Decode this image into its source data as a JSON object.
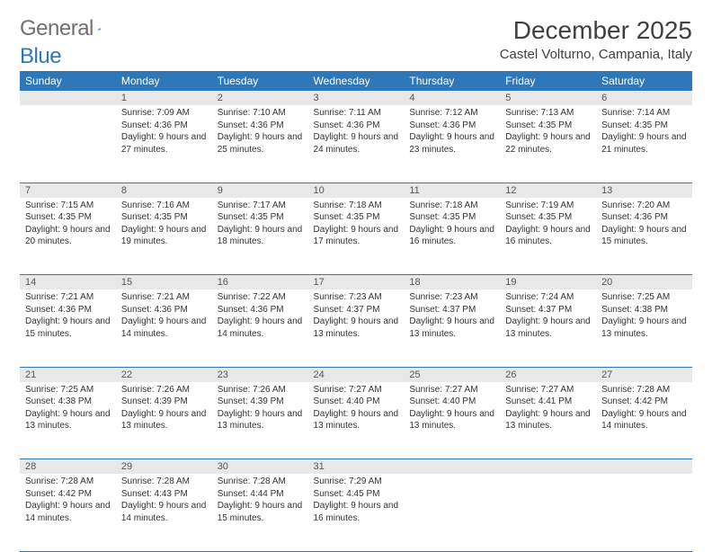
{
  "logo": {
    "text1": "General",
    "text2": "Blue"
  },
  "title": "December 2025",
  "location": "Castel Volturno, Campania, Italy",
  "headerColor": "#2e77b8",
  "dayHeaderBg": "#e8e8e8",
  "weekdays": [
    "Sunday",
    "Monday",
    "Tuesday",
    "Wednesday",
    "Thursday",
    "Friday",
    "Saturday"
  ],
  "weeks": [
    [
      null,
      {
        "n": "1",
        "sr": "7:09 AM",
        "ss": "4:36 PM",
        "dl": "9 hours and 27 minutes."
      },
      {
        "n": "2",
        "sr": "7:10 AM",
        "ss": "4:36 PM",
        "dl": "9 hours and 25 minutes."
      },
      {
        "n": "3",
        "sr": "7:11 AM",
        "ss": "4:36 PM",
        "dl": "9 hours and 24 minutes."
      },
      {
        "n": "4",
        "sr": "7:12 AM",
        "ss": "4:36 PM",
        "dl": "9 hours and 23 minutes."
      },
      {
        "n": "5",
        "sr": "7:13 AM",
        "ss": "4:35 PM",
        "dl": "9 hours and 22 minutes."
      },
      {
        "n": "6",
        "sr": "7:14 AM",
        "ss": "4:35 PM",
        "dl": "9 hours and 21 minutes."
      }
    ],
    [
      {
        "n": "7",
        "sr": "7:15 AM",
        "ss": "4:35 PM",
        "dl": "9 hours and 20 minutes."
      },
      {
        "n": "8",
        "sr": "7:16 AM",
        "ss": "4:35 PM",
        "dl": "9 hours and 19 minutes."
      },
      {
        "n": "9",
        "sr": "7:17 AM",
        "ss": "4:35 PM",
        "dl": "9 hours and 18 minutes."
      },
      {
        "n": "10",
        "sr": "7:18 AM",
        "ss": "4:35 PM",
        "dl": "9 hours and 17 minutes."
      },
      {
        "n": "11",
        "sr": "7:18 AM",
        "ss": "4:35 PM",
        "dl": "9 hours and 16 minutes."
      },
      {
        "n": "12",
        "sr": "7:19 AM",
        "ss": "4:35 PM",
        "dl": "9 hours and 16 minutes."
      },
      {
        "n": "13",
        "sr": "7:20 AM",
        "ss": "4:36 PM",
        "dl": "9 hours and 15 minutes."
      }
    ],
    [
      {
        "n": "14",
        "sr": "7:21 AM",
        "ss": "4:36 PM",
        "dl": "9 hours and 15 minutes."
      },
      {
        "n": "15",
        "sr": "7:21 AM",
        "ss": "4:36 PM",
        "dl": "9 hours and 14 minutes."
      },
      {
        "n": "16",
        "sr": "7:22 AM",
        "ss": "4:36 PM",
        "dl": "9 hours and 14 minutes."
      },
      {
        "n": "17",
        "sr": "7:23 AM",
        "ss": "4:37 PM",
        "dl": "9 hours and 13 minutes."
      },
      {
        "n": "18",
        "sr": "7:23 AM",
        "ss": "4:37 PM",
        "dl": "9 hours and 13 minutes."
      },
      {
        "n": "19",
        "sr": "7:24 AM",
        "ss": "4:37 PM",
        "dl": "9 hours and 13 minutes."
      },
      {
        "n": "20",
        "sr": "7:25 AM",
        "ss": "4:38 PM",
        "dl": "9 hours and 13 minutes."
      }
    ],
    [
      {
        "n": "21",
        "sr": "7:25 AM",
        "ss": "4:38 PM",
        "dl": "9 hours and 13 minutes."
      },
      {
        "n": "22",
        "sr": "7:26 AM",
        "ss": "4:39 PM",
        "dl": "9 hours and 13 minutes."
      },
      {
        "n": "23",
        "sr": "7:26 AM",
        "ss": "4:39 PM",
        "dl": "9 hours and 13 minutes."
      },
      {
        "n": "24",
        "sr": "7:27 AM",
        "ss": "4:40 PM",
        "dl": "9 hours and 13 minutes."
      },
      {
        "n": "25",
        "sr": "7:27 AM",
        "ss": "4:40 PM",
        "dl": "9 hours and 13 minutes."
      },
      {
        "n": "26",
        "sr": "7:27 AM",
        "ss": "4:41 PM",
        "dl": "9 hours and 13 minutes."
      },
      {
        "n": "27",
        "sr": "7:28 AM",
        "ss": "4:42 PM",
        "dl": "9 hours and 14 minutes."
      }
    ],
    [
      {
        "n": "28",
        "sr": "7:28 AM",
        "ss": "4:42 PM",
        "dl": "9 hours and 14 minutes."
      },
      {
        "n": "29",
        "sr": "7:28 AM",
        "ss": "4:43 PM",
        "dl": "9 hours and 14 minutes."
      },
      {
        "n": "30",
        "sr": "7:28 AM",
        "ss": "4:44 PM",
        "dl": "9 hours and 15 minutes."
      },
      {
        "n": "31",
        "sr": "7:29 AM",
        "ss": "4:45 PM",
        "dl": "9 hours and 16 minutes."
      },
      null,
      null,
      null
    ]
  ],
  "labels": {
    "sunrise": "Sunrise: ",
    "sunset": "Sunset: ",
    "daylight": "Daylight: "
  }
}
